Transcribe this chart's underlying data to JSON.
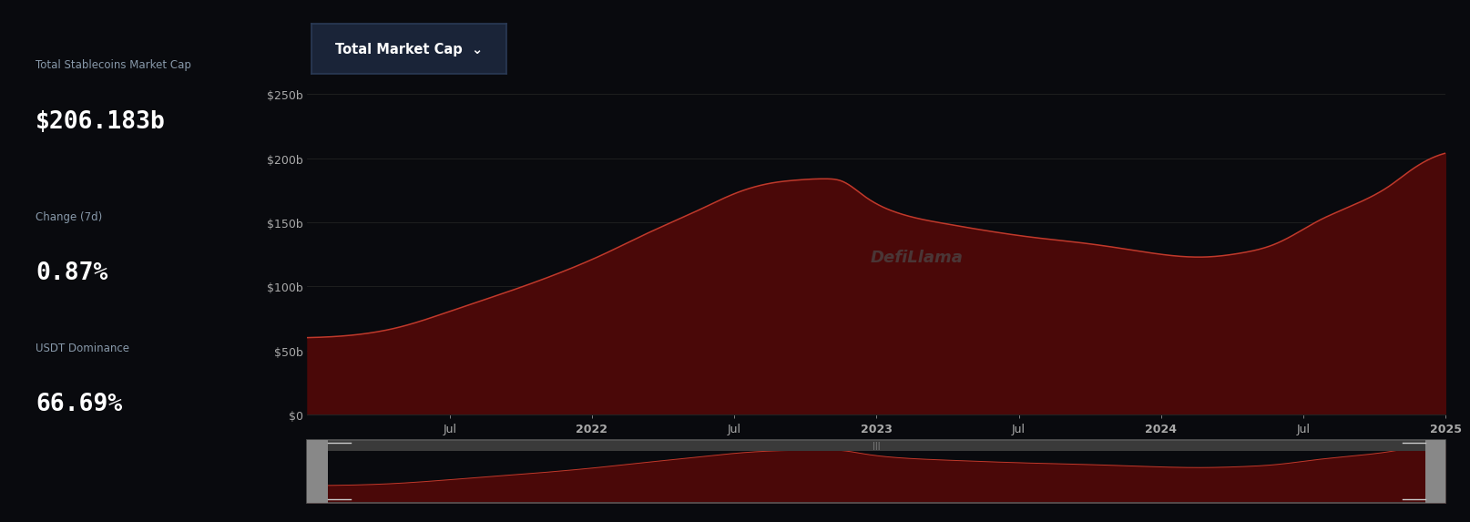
{
  "bg_color": "#090a0e",
  "left_panel_color": "#0f1117",
  "title": "Total Market Cap",
  "stats": {
    "label1": "Total Stablecoins Market Cap",
    "value1": "$206.183b",
    "label2": "Change (7d)",
    "value2": "0.87%",
    "label3": "USDT Dominance",
    "value3": "66.69%"
  },
  "line_color": "#c0392b",
  "fill_color": "#4a0808",
  "ytick_labels": [
    "$0",
    "$50b",
    "$100b",
    "$150b",
    "$200b",
    "$250b"
  ],
  "ytick_values": [
    0,
    50,
    100,
    150,
    200,
    250
  ],
  "xtick_labels": [
    "Jul",
    "2022",
    "Jul",
    "2023",
    "Jul",
    "2024",
    "Jul",
    "2025"
  ],
  "watermark": "DefiLlama",
  "grid_color": "#222222",
  "text_color": "#aaaaaa",
  "label_color": "#8899aa",
  "title_btn_color": "#1a2438",
  "title_btn_border": "#2a3a55",
  "scrollbar_bg": "#2a2a2a",
  "scrollbar_border": "#555555",
  "handle_color": "#888888",
  "ctrl_x": [
    0.0,
    0.04,
    0.08,
    0.13,
    0.18,
    0.22,
    0.26,
    0.3,
    0.34,
    0.38,
    0.41,
    0.43,
    0.455,
    0.47,
    0.49,
    0.52,
    0.56,
    0.6,
    0.64,
    0.68,
    0.72,
    0.76,
    0.79,
    0.82,
    0.85,
    0.87,
    0.89,
    0.91,
    0.93,
    0.95,
    0.97,
    0.985,
    1.0
  ],
  "ctrl_y": [
    60,
    62,
    68,
    82,
    97,
    110,
    125,
    142,
    158,
    174,
    181,
    183,
    184,
    182,
    170,
    157,
    149,
    143,
    138,
    134,
    129,
    124,
    123,
    126,
    133,
    142,
    152,
    160,
    168,
    178,
    191,
    199,
    204
  ]
}
